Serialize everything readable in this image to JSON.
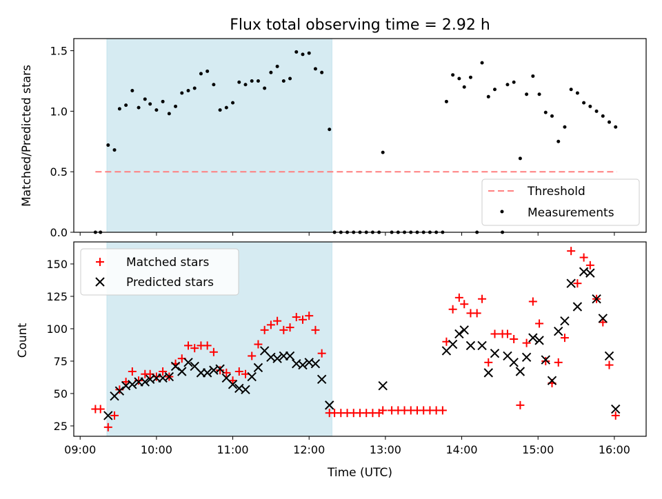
{
  "chart_data": [
    {
      "type": "scatter",
      "title": "Flux total observing time = 2.92 h",
      "xlabel": "",
      "ylabel": "Matched/Predicted stars",
      "xlim": [
        "08:55",
        "16:25"
      ],
      "ylim": [
        0,
        1.6
      ],
      "yticks": [
        "0.0",
        "0.5",
        "1.0",
        "1.5"
      ],
      "grid": false,
      "legend_position": "lower-right",
      "shaded_span": {
        "from": "09:21",
        "to": "12:18",
        "color": "#add8e6"
      },
      "threshold": {
        "name": "Threshold",
        "value": 0.5,
        "from": "09:12",
        "to": "16:02",
        "color": "#ff7f7f"
      },
      "series": [
        {
          "name": "Measurements",
          "color": "#000000",
          "points": [
            [
              "09:12",
              0
            ],
            [
              "09:16",
              0
            ],
            [
              "09:22",
              0.72
            ],
            [
              "09:27",
              0.68
            ],
            [
              "09:31",
              1.02
            ],
            [
              "09:36",
              1.05
            ],
            [
              "09:41",
              1.17
            ],
            [
              "09:46",
              1.03
            ],
            [
              "09:51",
              1.1
            ],
            [
              "09:55",
              1.06
            ],
            [
              "10:00",
              1.01
            ],
            [
              "10:05",
              1.08
            ],
            [
              "10:10",
              0.98
            ],
            [
              "10:15",
              1.04
            ],
            [
              "10:20",
              1.15
            ],
            [
              "10:25",
              1.17
            ],
            [
              "10:30",
              1.19
            ],
            [
              "10:35",
              1.31
            ],
            [
              "10:40",
              1.33
            ],
            [
              "10:45",
              1.22
            ],
            [
              "10:50",
              1.01
            ],
            [
              "10:55",
              1.03
            ],
            [
              "11:00",
              1.07
            ],
            [
              "11:05",
              1.24
            ],
            [
              "11:10",
              1.22
            ],
            [
              "11:15",
              1.25
            ],
            [
              "11:20",
              1.25
            ],
            [
              "11:25",
              1.19
            ],
            [
              "11:30",
              1.32
            ],
            [
              "11:35",
              1.37
            ],
            [
              "11:40",
              1.25
            ],
            [
              "11:45",
              1.27
            ],
            [
              "11:50",
              1.49
            ],
            [
              "11:55",
              1.47
            ],
            [
              "12:00",
              1.48
            ],
            [
              "12:05",
              1.35
            ],
            [
              "12:10",
              1.32
            ],
            [
              "12:16",
              0.85
            ],
            [
              "12:20",
              0
            ],
            [
              "12:25",
              0
            ],
            [
              "12:30",
              0
            ],
            [
              "12:35",
              0
            ],
            [
              "12:40",
              0
            ],
            [
              "12:45",
              0
            ],
            [
              "12:50",
              0
            ],
            [
              "12:55",
              0
            ],
            [
              "12:58",
              0.66
            ],
            [
              "13:05",
              0
            ],
            [
              "13:10",
              0
            ],
            [
              "13:15",
              0
            ],
            [
              "13:20",
              0
            ],
            [
              "13:25",
              0
            ],
            [
              "13:30",
              0
            ],
            [
              "13:35",
              0
            ],
            [
              "13:40",
              0
            ],
            [
              "13:45",
              0
            ],
            [
              "13:48",
              1.08
            ],
            [
              "13:53",
              1.3
            ],
            [
              "13:58",
              1.27
            ],
            [
              "14:02",
              1.2
            ],
            [
              "14:07",
              1.28
            ],
            [
              "14:12",
              0
            ],
            [
              "14:16",
              1.4
            ],
            [
              "14:21",
              1.12
            ],
            [
              "14:26",
              1.18
            ],
            [
              "14:32",
              0
            ],
            [
              "14:36",
              1.22
            ],
            [
              "14:41",
              1.24
            ],
            [
              "14:46",
              0.61
            ],
            [
              "14:51",
              1.14
            ],
            [
              "14:56",
              1.29
            ],
            [
              "15:01",
              1.14
            ],
            [
              "15:06",
              0.99
            ],
            [
              "15:11",
              0.96
            ],
            [
              "15:16",
              0.75
            ],
            [
              "15:21",
              0.87
            ],
            [
              "15:26",
              1.18
            ],
            [
              "15:31",
              1.15
            ],
            [
              "15:36",
              1.07
            ],
            [
              "15:41",
              1.04
            ],
            [
              "15:46",
              1.0
            ],
            [
              "15:51",
              0.96
            ],
            [
              "15:56",
              0.91
            ],
            [
              "16:01",
              0.87
            ]
          ]
        }
      ]
    },
    {
      "type": "scatter",
      "title": "",
      "xlabel": "Time (UTC)",
      "ylabel": "Count",
      "xlim": [
        "08:55",
        "16:25"
      ],
      "ylim": [
        17,
        167
      ],
      "yticks": [
        "25",
        "50",
        "75",
        "100",
        "125",
        "150"
      ],
      "xticks": [
        "09:00",
        "10:00",
        "11:00",
        "12:00",
        "13:00",
        "14:00",
        "15:00",
        "16:00"
      ],
      "grid": false,
      "legend_position": "upper-left",
      "shaded_span": {
        "from": "09:21",
        "to": "12:18",
        "color": "#add8e6"
      },
      "series": [
        {
          "name": "Matched stars",
          "marker": "+",
          "color": "#ff0000",
          "points": [
            [
              "09:12",
              38
            ],
            [
              "09:16",
              38
            ],
            [
              "09:22",
              24
            ],
            [
              "09:27",
              33
            ],
            [
              "09:31",
              53
            ],
            [
              "09:36",
              59
            ],
            [
              "09:41",
              67
            ],
            [
              "09:46",
              60
            ],
            [
              "09:51",
              65
            ],
            [
              "09:55",
              65
            ],
            [
              "10:00",
              63
            ],
            [
              "10:05",
              67
            ],
            [
              "10:10",
              63
            ],
            [
              "10:15",
              73
            ],
            [
              "10:20",
              77
            ],
            [
              "10:25",
              87
            ],
            [
              "10:30",
              85
            ],
            [
              "10:35",
              87
            ],
            [
              "10:40",
              87
            ],
            [
              "10:45",
              82
            ],
            [
              "10:50",
              68
            ],
            [
              "10:55",
              66
            ],
            [
              "11:00",
              60
            ],
            [
              "11:05",
              67
            ],
            [
              "11:10",
              65
            ],
            [
              "11:15",
              79
            ],
            [
              "11:20",
              88
            ],
            [
              "11:25",
              99
            ],
            [
              "11:30",
              103
            ],
            [
              "11:35",
              106
            ],
            [
              "11:40",
              99
            ],
            [
              "11:45",
              101
            ],
            [
              "11:50",
              109
            ],
            [
              "11:55",
              107
            ],
            [
              "12:00",
              110
            ],
            [
              "12:05",
              99
            ],
            [
              "12:10",
              81
            ],
            [
              "12:16",
              35
            ],
            [
              "12:20",
              35
            ],
            [
              "12:25",
              35
            ],
            [
              "12:30",
              35
            ],
            [
              "12:35",
              35
            ],
            [
              "12:40",
              35
            ],
            [
              "12:45",
              35
            ],
            [
              "12:50",
              35
            ],
            [
              "12:55",
              35
            ],
            [
              "12:58",
              37
            ],
            [
              "13:05",
              37
            ],
            [
              "13:10",
              37
            ],
            [
              "13:15",
              37
            ],
            [
              "13:20",
              37
            ],
            [
              "13:25",
              37
            ],
            [
              "13:30",
              37
            ],
            [
              "13:35",
              37
            ],
            [
              "13:40",
              37
            ],
            [
              "13:45",
              37
            ],
            [
              "13:48",
              90
            ],
            [
              "13:53",
              115
            ],
            [
              "13:58",
              124
            ],
            [
              "14:02",
              119
            ],
            [
              "14:07",
              112
            ],
            [
              "14:12",
              112
            ],
            [
              "14:16",
              123
            ],
            [
              "14:21",
              74
            ],
            [
              "14:26",
              96
            ],
            [
              "14:32",
              96
            ],
            [
              "14:36",
              96
            ],
            [
              "14:41",
              92
            ],
            [
              "14:46",
              41
            ],
            [
              "14:51",
              89
            ],
            [
              "14:56",
              121
            ],
            [
              "15:01",
              104
            ],
            [
              "15:06",
              75
            ],
            [
              "15:11",
              58
            ],
            [
              "15:16",
              74
            ],
            [
              "15:21",
              93
            ],
            [
              "15:26",
              160
            ],
            [
              "15:31",
              135
            ],
            [
              "15:36",
              155
            ],
            [
              "15:41",
              149
            ],
            [
              "15:46",
              123
            ],
            [
              "15:51",
              105
            ],
            [
              "15:56",
              72
            ],
            [
              "16:01",
              33
            ]
          ]
        },
        {
          "name": "Predicted stars",
          "marker": "x",
          "color": "#000000",
          "points": [
            [
              "09:22",
              33
            ],
            [
              "09:27",
              48
            ],
            [
              "09:31",
              52
            ],
            [
              "09:36",
              56
            ],
            [
              "09:41",
              57
            ],
            [
              "09:46",
              59
            ],
            [
              "09:51",
              59
            ],
            [
              "09:55",
              61
            ],
            [
              "10:00",
              62
            ],
            [
              "10:05",
              62
            ],
            [
              "10:10",
              63
            ],
            [
              "10:15",
              71
            ],
            [
              "10:20",
              67
            ],
            [
              "10:25",
              74
            ],
            [
              "10:30",
              71
            ],
            [
              "10:35",
              66
            ],
            [
              "10:40",
              66
            ],
            [
              "10:45",
              68
            ],
            [
              "10:50",
              69
            ],
            [
              "10:55",
              62
            ],
            [
              "11:00",
              57
            ],
            [
              "11:05",
              54
            ],
            [
              "11:10",
              53
            ],
            [
              "11:15",
              63
            ],
            [
              "11:20",
              70
            ],
            [
              "11:25",
              83
            ],
            [
              "11:30",
              78
            ],
            [
              "11:35",
              77
            ],
            [
              "11:40",
              79
            ],
            [
              "11:45",
              79
            ],
            [
              "11:50",
              73
            ],
            [
              "11:55",
              72
            ],
            [
              "12:00",
              74
            ],
            [
              "12:05",
              73
            ],
            [
              "12:10",
              61
            ],
            [
              "12:16",
              41
            ],
            [
              "12:58",
              56
            ],
            [
              "13:48",
              83
            ],
            [
              "13:53",
              88
            ],
            [
              "13:58",
              96
            ],
            [
              "14:02",
              99
            ],
            [
              "14:07",
              87
            ],
            [
              "14:16",
              87
            ],
            [
              "14:21",
              66
            ],
            [
              "14:26",
              81
            ],
            [
              "14:36",
              79
            ],
            [
              "14:41",
              74
            ],
            [
              "14:46",
              67
            ],
            [
              "14:51",
              78
            ],
            [
              "14:56",
              93
            ],
            [
              "15:01",
              91
            ],
            [
              "15:06",
              76
            ],
            [
              "15:11",
              60
            ],
            [
              "15:16",
              98
            ],
            [
              "15:21",
              106
            ],
            [
              "15:26",
              135
            ],
            [
              "15:31",
              117
            ],
            [
              "15:36",
              144
            ],
            [
              "15:41",
              143
            ],
            [
              "15:46",
              123
            ],
            [
              "15:51",
              108
            ],
            [
              "15:56",
              79
            ],
            [
              "16:01",
              38
            ]
          ]
        }
      ]
    }
  ]
}
